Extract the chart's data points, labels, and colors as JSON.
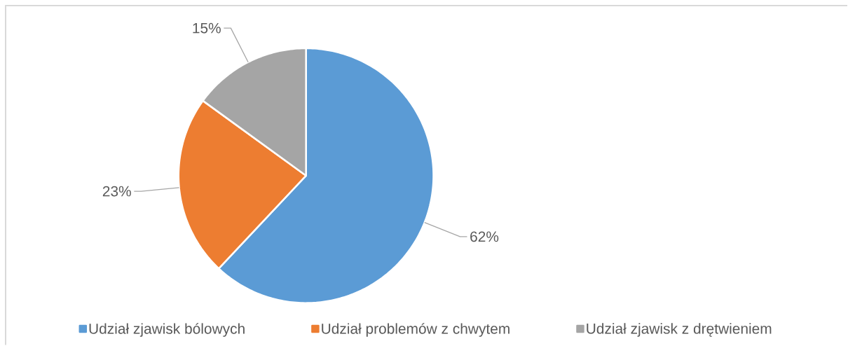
{
  "chart_data": {
    "type": "pie",
    "categories": [
      "Udział zjawisk bólowych",
      "Udział problemów z chwytem",
      "Udział zjawisk z drętwieniem"
    ],
    "values": [
      62,
      23,
      15
    ],
    "colors": [
      "#5b9bd5",
      "#ed7d31",
      "#a5a5a5"
    ],
    "value_labels": [
      "62%",
      "23%",
      "15%"
    ],
    "legend": "bottom"
  }
}
